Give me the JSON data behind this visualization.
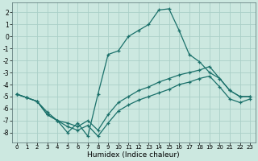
{
  "xlabel": "Humidex (Indice chaleur)",
  "background_color": "#cce8e0",
  "grid_color": "#aacfc8",
  "line_color": "#1a706a",
  "xlim": [
    -0.5,
    23.5
  ],
  "ylim": [
    -8.8,
    2.8
  ],
  "yticks": [
    2,
    1,
    0,
    -1,
    -2,
    -3,
    -4,
    -5,
    -6,
    -7,
    -8
  ],
  "xticks": [
    0,
    1,
    2,
    3,
    4,
    5,
    6,
    7,
    8,
    9,
    10,
    11,
    12,
    13,
    14,
    15,
    16,
    17,
    18,
    19,
    20,
    21,
    22,
    23
  ],
  "curve1_x": [
    0,
    1,
    2,
    3,
    4,
    5,
    6,
    7,
    8,
    9,
    10,
    11,
    12,
    13,
    14,
    15,
    16,
    17,
    18,
    19,
    20,
    21,
    22,
    23
  ],
  "curve1_y": [
    -4.8,
    -5.1,
    -5.4,
    -6.3,
    -7.0,
    -8.0,
    -7.2,
    -8.3,
    -4.8,
    -1.5,
    -1.2,
    0.0,
    0.5,
    1.0,
    2.2,
    2.3,
    0.5,
    -1.5,
    -2.1,
    -3.0,
    -3.5,
    -4.5,
    -5.0,
    -5.0
  ],
  "curve2_x": [
    0,
    1,
    2,
    3,
    4,
    5,
    6,
    7,
    8,
    9,
    10,
    11,
    12,
    13,
    14,
    15,
    16,
    17,
    18,
    19,
    20,
    21,
    22,
    23
  ],
  "curve2_y": [
    -4.8,
    -5.1,
    -5.4,
    -6.5,
    -7.0,
    -7.2,
    -7.5,
    -7.0,
    -7.8,
    -6.5,
    -5.5,
    -5.0,
    -4.5,
    -4.2,
    -3.8,
    -3.5,
    -3.2,
    -3.0,
    -2.8,
    -2.5,
    -3.5,
    -4.5,
    -5.0,
    -5.0
  ],
  "curve3_x": [
    0,
    1,
    2,
    3,
    4,
    5,
    6,
    7,
    8,
    9,
    10,
    11,
    12,
    13,
    14,
    15,
    16,
    17,
    18,
    19,
    20,
    21,
    22,
    23
  ],
  "curve3_y": [
    -4.8,
    -5.1,
    -5.4,
    -6.5,
    -7.0,
    -7.5,
    -7.8,
    -7.4,
    -8.3,
    -7.2,
    -6.2,
    -5.7,
    -5.3,
    -5.0,
    -4.7,
    -4.4,
    -4.0,
    -3.8,
    -3.5,
    -3.3,
    -4.2,
    -5.2,
    -5.5,
    -5.2
  ]
}
